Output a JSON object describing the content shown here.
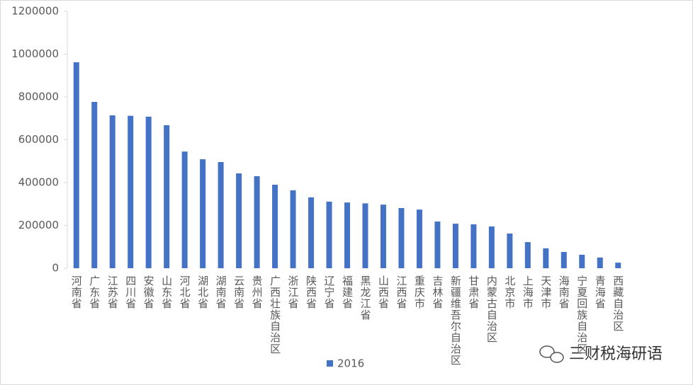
{
  "chart_data": {
    "type": "bar",
    "categories": [
      "河南省",
      "广东省",
      "江苏省",
      "四川省",
      "安徽省",
      "山东省",
      "河北省",
      "湖北省",
      "湖南省",
      "云南省",
      "贵州省",
      "广西壮族自治区",
      "浙江省",
      "陕西省",
      "辽宁省",
      "福建省",
      "黑龙江省",
      "山西省",
      "江西省",
      "重庆市",
      "吉林省",
      "新疆维吾尔自治区",
      "甘肃省",
      "内蒙古自治区",
      "北京市",
      "上海市",
      "天津市",
      "海南省",
      "宁夏回族自治区",
      "青海省",
      "西藏自治区"
    ],
    "series": [
      {
        "name": "2016",
        "color": "#4472c4",
        "values": [
          962000,
          777000,
          714000,
          712000,
          708000,
          668000,
          545000,
          509000,
          496000,
          443000,
          430000,
          390000,
          364000,
          331000,
          311000,
          307000,
          303000,
          297000,
          281000,
          274000,
          218000,
          208000,
          205000,
          195000,
          162000,
          122000,
          93000,
          76000,
          63000,
          50000,
          26000
        ]
      }
    ],
    "ylim": [
      0,
      1200000
    ],
    "yticks": [
      0,
      200000,
      400000,
      600000,
      800000,
      1000000,
      1200000
    ],
    "grid": false,
    "legend": "bottom"
  },
  "watermark": "三财税海研语"
}
